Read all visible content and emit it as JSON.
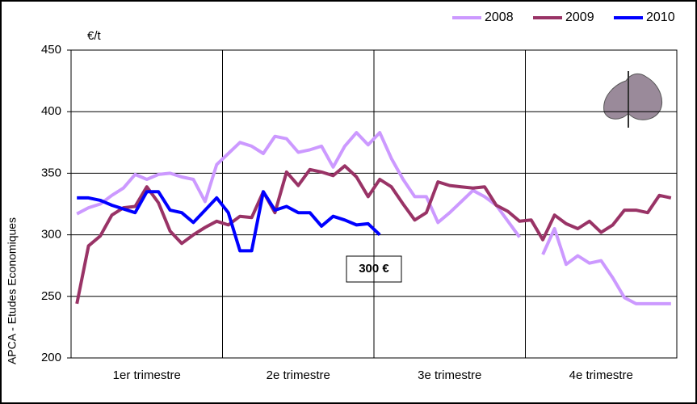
{
  "chart_data": {
    "type": "line",
    "y_unit": "€/t",
    "side_note": "APCA - Etudes Economiques",
    "annotation": "300 €",
    "categories": [
      null,
      null,
      null,
      null,
      null,
      null,
      null,
      null,
      null,
      null,
      null,
      null,
      null,
      null,
      null,
      null,
      null,
      null,
      null,
      null,
      null,
      null,
      null,
      null,
      null,
      null,
      null,
      null,
      null,
      null,
      null,
      null,
      null,
      null,
      null,
      null,
      null,
      null,
      null,
      null,
      null,
      null,
      null,
      null,
      null,
      null,
      null,
      null,
      null,
      null,
      null,
      null
    ],
    "quarters": [
      "1er trimestre",
      "2e trimestre",
      "3e trimestre",
      "4e trimestre"
    ],
    "ylim": [
      200,
      450
    ],
    "yticks": [
      200,
      250,
      300,
      350,
      400,
      450
    ],
    "grid": true,
    "legend": "top-right",
    "series": [
      {
        "name": "2008",
        "color": "#cc99ff",
        "values": [
          317,
          322,
          325,
          332,
          338,
          349,
          345,
          349,
          350,
          347,
          345,
          327,
          357,
          366,
          375,
          372,
          366,
          380,
          378,
          367,
          369,
          372,
          355,
          372,
          383,
          373,
          383,
          362,
          345,
          331,
          331,
          310,
          318,
          327,
          336,
          331,
          324,
          311,
          298,
          null,
          284,
          305,
          276,
          283,
          277,
          279,
          265,
          249,
          244,
          244,
          244,
          244
        ]
      },
      {
        "name": "2009",
        "color": "#993366",
        "values": [
          244,
          291,
          299,
          316,
          322,
          323,
          339,
          326,
          303,
          293,
          300,
          306,
          311,
          308,
          315,
          314,
          335,
          318,
          351,
          340,
          353,
          351,
          348,
          356,
          347,
          331,
          345,
          339,
          325,
          312,
          318,
          343,
          340,
          339,
          338,
          339,
          324,
          319,
          311,
          312,
          296,
          316,
          309,
          305,
          311,
          302,
          308,
          320,
          320,
          318,
          332,
          330
        ]
      },
      {
        "name": "2010",
        "color": "#0000ff",
        "values": [
          330,
          330,
          328,
          324,
          321,
          318,
          335,
          335,
          320,
          318,
          310,
          320,
          330,
          318,
          287,
          287,
          335,
          320,
          323,
          318,
          318,
          307,
          315,
          312,
          308,
          309,
          300,
          null,
          null,
          null,
          null,
          null,
          null,
          null,
          null,
          null,
          null,
          null,
          null,
          null,
          null,
          null,
          null,
          null,
          null,
          null,
          null,
          null,
          null,
          null,
          null,
          null
        ]
      }
    ]
  }
}
